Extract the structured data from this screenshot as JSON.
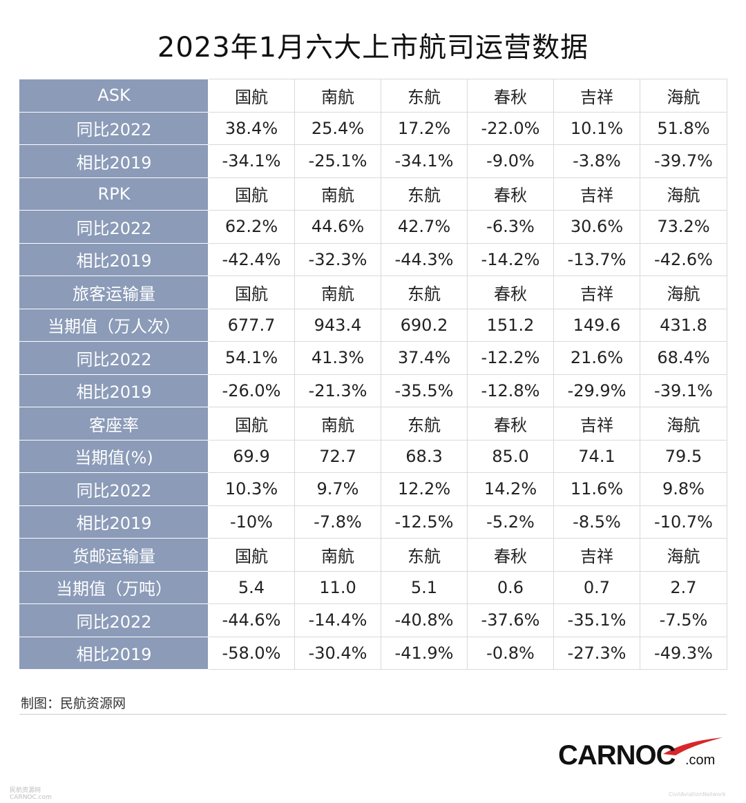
{
  "title": "2023年1月六大上市航司运营数据",
  "chart_data": {
    "type": "table",
    "title": "2023年1月六大上市航司运营数据",
    "columns": [
      "国航",
      "南航",
      "东航",
      "春秋",
      "吉祥",
      "海航"
    ],
    "rows": [
      {
        "label": "ASK",
        "cells": [
          "国航",
          "南航",
          "东航",
          "春秋",
          "吉祥",
          "海航"
        ]
      },
      {
        "label": "同比2022",
        "cells": [
          "38.4%",
          "25.4%",
          "17.2%",
          "-22.0%",
          "10.1%",
          "51.8%"
        ]
      },
      {
        "label": "相比2019",
        "cells": [
          "-34.1%",
          "-25.1%",
          "-34.1%",
          "-9.0%",
          "-3.8%",
          "-39.7%"
        ]
      },
      {
        "label": "RPK",
        "cells": [
          "国航",
          "南航",
          "东航",
          "春秋",
          "吉祥",
          "海航"
        ]
      },
      {
        "label": "同比2022",
        "cells": [
          "62.2%",
          "44.6%",
          "42.7%",
          "-6.3%",
          "30.6%",
          "73.2%"
        ]
      },
      {
        "label": "相比2019",
        "cells": [
          "-42.4%",
          "-32.3%",
          "-44.3%",
          "-14.2%",
          "-13.7%",
          "-42.6%"
        ]
      },
      {
        "label": "旅客运输量",
        "cells": [
          "国航",
          "南航",
          "东航",
          "春秋",
          "吉祥",
          "海航"
        ]
      },
      {
        "label": "当期值（万人次）",
        "cells": [
          "677.7",
          "943.4",
          "690.2",
          "151.2",
          "149.6",
          "431.8"
        ]
      },
      {
        "label": "同比2022",
        "cells": [
          "54.1%",
          "41.3%",
          "37.4%",
          "-12.2%",
          "21.6%",
          "68.4%"
        ]
      },
      {
        "label": "相比2019",
        "cells": [
          "-26.0%",
          "-21.3%",
          "-35.5%",
          "-12.8%",
          "-29.9%",
          "-39.1%"
        ]
      },
      {
        "label": "客座率",
        "cells": [
          "国航",
          "南航",
          "东航",
          "春秋",
          "吉祥",
          "海航"
        ]
      },
      {
        "label": "当期值(%)",
        "cells": [
          "69.9",
          "72.7",
          "68.3",
          "85.0",
          "74.1",
          "79.5"
        ]
      },
      {
        "label": "同比2022",
        "cells": [
          "10.3%",
          "9.7%",
          "12.2%",
          "14.2%",
          "11.6%",
          "9.8%"
        ]
      },
      {
        "label": "相比2019",
        "cells": [
          "-10%",
          "-7.8%",
          "-12.5%",
          "-5.2%",
          "-8.5%",
          "-10.7%"
        ]
      },
      {
        "label": "货邮运输量",
        "cells": [
          "国航",
          "南航",
          "东航",
          "春秋",
          "吉祥",
          "海航"
        ]
      },
      {
        "label": "当期值（万吨）",
        "cells": [
          "5.4",
          "11.0",
          "5.1",
          "0.6",
          "0.7",
          "2.7"
        ]
      },
      {
        "label": "同比2022",
        "cells": [
          "-44.6%",
          "-14.4%",
          "-40.8%",
          "-37.6%",
          "-35.1%",
          "-7.5%"
        ]
      },
      {
        "label": "相比2019",
        "cells": [
          "-58.0%",
          "-30.4%",
          "-41.9%",
          "-0.8%",
          "-27.3%",
          "-49.3%"
        ]
      }
    ]
  },
  "source": "制图：民航资源网",
  "logo": {
    "word": "CARNOC",
    "domain": ".com"
  },
  "watermark_left": [
    "民航资源网",
    "CARNOC.com"
  ],
  "watermark_right": "CivilAviationNetwork",
  "colors": {
    "label_bg": "#8b9bb8",
    "label_text": "#ffffff",
    "grid": "#d9d9d9",
    "logo_swoosh": "#d8262b"
  }
}
